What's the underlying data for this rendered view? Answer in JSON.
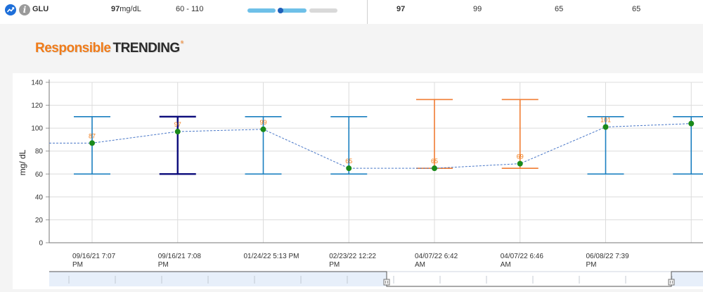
{
  "row": {
    "test_name": "GLU",
    "result_value": "97",
    "result_unit": "mg/dL",
    "reference_range": "60 - 110",
    "result_position_fraction": 0.37,
    "history": [
      "97",
      "99",
      "65",
      "65"
    ]
  },
  "icons": {
    "trend": "trend-chart-icon",
    "info": "info-icon",
    "info_glyph": "i"
  },
  "brand": {
    "part1": "Responsible",
    "part2": "TRENDING",
    "mark": "®"
  },
  "chart_data": {
    "type": "line",
    "ylabel": "mg/ dL",
    "ylim": [
      0,
      140
    ],
    "yticks": [
      0,
      20,
      40,
      60,
      80,
      100,
      120,
      140
    ],
    "categories": [
      [
        "09/16/21  7:07",
        "PM"
      ],
      [
        "09/16/21  7:08",
        "PM"
      ],
      [
        "01/24/22  5:13 PM",
        ""
      ],
      [
        "02/23/22  12:22",
        "PM"
      ],
      [
        "04/07/22  6:42",
        "AM"
      ],
      [
        "04/07/22  6:46",
        "AM"
      ],
      [
        "06/08/22  7:39",
        "PM"
      ],
      [
        "",
        ""
      ]
    ],
    "series": [
      {
        "values": [
          87,
          97,
          99,
          65,
          65,
          69,
          101,
          104
        ]
      }
    ],
    "data_labels": [
      "87",
      "97",
      "99",
      "65",
      "65",
      "69",
      "101",
      ""
    ],
    "ranges": [
      {
        "low": 60,
        "high": 110,
        "color": "#1a7fc0"
      },
      {
        "low": 60,
        "high": 110,
        "color": "#0a0a7a"
      },
      {
        "low": 60,
        "high": 110,
        "color": "#1a7fc0"
      },
      {
        "low": 60,
        "high": 110,
        "color": "#1a7fc0"
      },
      {
        "low": 65,
        "high": 125,
        "color": "#f07c32"
      },
      {
        "low": 65,
        "high": 125,
        "color": "#f07c32"
      },
      {
        "low": 60,
        "high": 110,
        "color": "#1a7fc0"
      },
      {
        "low": 60,
        "high": 110,
        "color": "#1a7fc0"
      }
    ],
    "leading_value": 87,
    "colors": {
      "point": "#1a8a1a",
      "line": "#4a78c8",
      "label": "#f07c1a",
      "grid": "#dcdcdc",
      "axis": "#333333"
    },
    "grid": true
  }
}
